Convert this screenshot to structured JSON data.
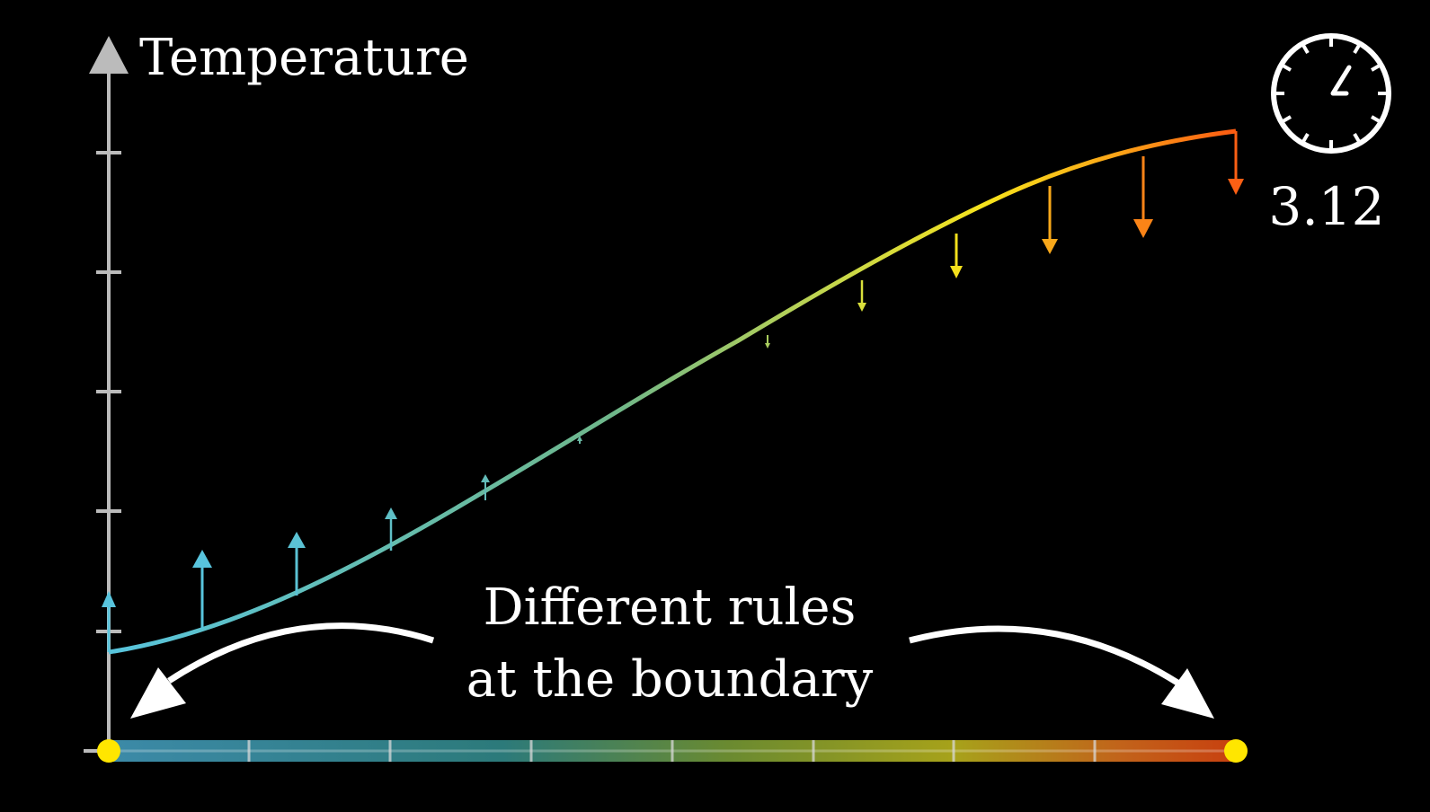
{
  "axis": {
    "y_label": "Temperature"
  },
  "timer": {
    "value": "3.12"
  },
  "annotation": {
    "line1": "Different rules",
    "line2": "at the boundary"
  },
  "colors": {
    "background": "#000000",
    "axis": "#bbbbbb",
    "cold": "#58c4dd",
    "warm": "#f7e31c",
    "hot": "#fc6116",
    "endpoint": "#ffe600",
    "text": "#ffffff"
  },
  "rod": {
    "segments": 8,
    "endpoints": [
      "left",
      "right"
    ]
  },
  "curve": {
    "shape": "S-shaped temperature curve, cold at left boundary, hot at right boundary",
    "derivative_arrows": 13
  },
  "icons": [
    "stopwatch-icon",
    "curved-arrow-left-icon",
    "curved-arrow-right-icon"
  ]
}
